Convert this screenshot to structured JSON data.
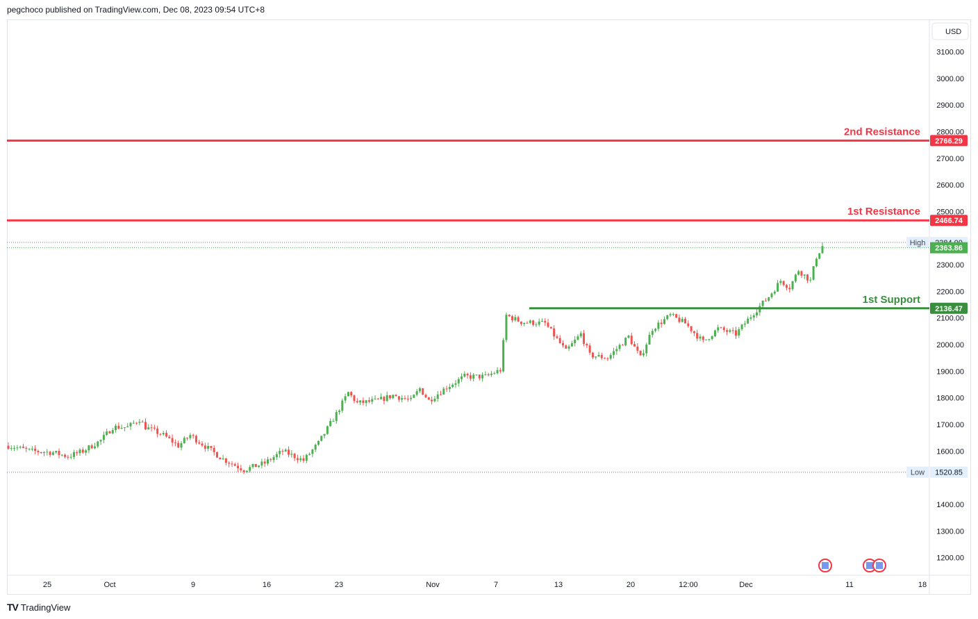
{
  "header": {
    "attribution": "pegchoco published on TradingView.com, Dec 08, 2023 09:54 UTC+8"
  },
  "brand": {
    "logo_glyph": "TV",
    "name": "TradingView"
  },
  "currency_button": "USD",
  "colors": {
    "up": "#26a69a",
    "up_fill": "#4caf50",
    "down": "#ef5350",
    "resistance": "#f23645",
    "support": "#388e3c",
    "grid": "#e0e3eb",
    "text": "#131722"
  },
  "chart_data": {
    "type": "candlestick",
    "symbol_currency": "USD",
    "y_axis": {
      "ticks": [
        3100,
        3000,
        2900,
        2800,
        2700,
        2600,
        2500,
        2300,
        2200,
        2100,
        2000,
        1900,
        1800,
        1700,
        1600,
        1400,
        1300,
        1200
      ],
      "ylim": [
        1175,
        3200
      ]
    },
    "x_axis": {
      "ticks": [
        "25",
        "Oct",
        "9",
        "16",
        "23",
        "Nov",
        "7",
        "13",
        "20",
        "12:00",
        "Dec",
        "11",
        "18"
      ]
    },
    "levels": [
      {
        "label": "2nd Resistance",
        "value": 2766.29,
        "value_label": "2766.29",
        "kind": "resistance"
      },
      {
        "label": "1st Resistance",
        "value": 2466.74,
        "value_label": "2466.74",
        "kind": "resistance"
      },
      {
        "label": "1st Support",
        "value": 2136.47,
        "value_label": "2136.47",
        "kind": "support"
      }
    ],
    "markers": [
      {
        "label": "High",
        "value": 2384.0,
        "value_label": "2384.00"
      },
      {
        "label": "Low",
        "value": 1520.85,
        "value_label": "1520.85"
      }
    ],
    "last_price": {
      "value": 2363.86,
      "value_label": "2363.86"
    },
    "price_path": [
      [
        0,
        1620
      ],
      [
        8,
        1600
      ],
      [
        15,
        1595
      ],
      [
        20,
        1580
      ],
      [
        25,
        1600
      ],
      [
        31,
        1640
      ],
      [
        35,
        1690
      ],
      [
        40,
        1690
      ],
      [
        44,
        1720
      ],
      [
        46,
        1690
      ],
      [
        52,
        1660
      ],
      [
        57,
        1620
      ],
      [
        61,
        1660
      ],
      [
        67,
        1610
      ],
      [
        72,
        1570
      ],
      [
        79,
        1530
      ],
      [
        86,
        1555
      ],
      [
        92,
        1600
      ],
      [
        99,
        1565
      ],
      [
        104,
        1630
      ],
      [
        110,
        1740
      ],
      [
        114,
        1820
      ],
      [
        117,
        1780
      ],
      [
        124,
        1790
      ],
      [
        129,
        1810
      ],
      [
        135,
        1790
      ],
      [
        138,
        1835
      ],
      [
        141,
        1790
      ],
      [
        147,
        1840
      ],
      [
        153,
        1880
      ],
      [
        160,
        1880
      ],
      [
        165,
        1905
      ],
      [
        167,
        2110
      ],
      [
        172,
        2085
      ],
      [
        180,
        2080
      ],
      [
        187,
        1975
      ],
      [
        192,
        2040
      ],
      [
        195,
        1960
      ],
      [
        201,
        1950
      ],
      [
        208,
        2030
      ],
      [
        212,
        1950
      ],
      [
        216,
        2060
      ],
      [
        222,
        2110
      ],
      [
        227,
        2080
      ],
      [
        233,
        2010
      ],
      [
        238,
        2060
      ],
      [
        244,
        2040
      ],
      [
        250,
        2120
      ],
      [
        255,
        2180
      ],
      [
        259,
        2240
      ],
      [
        262,
        2215
      ],
      [
        265,
        2280
      ],
      [
        269,
        2240
      ],
      [
        271,
        2330
      ],
      [
        273,
        2370
      ]
    ]
  }
}
